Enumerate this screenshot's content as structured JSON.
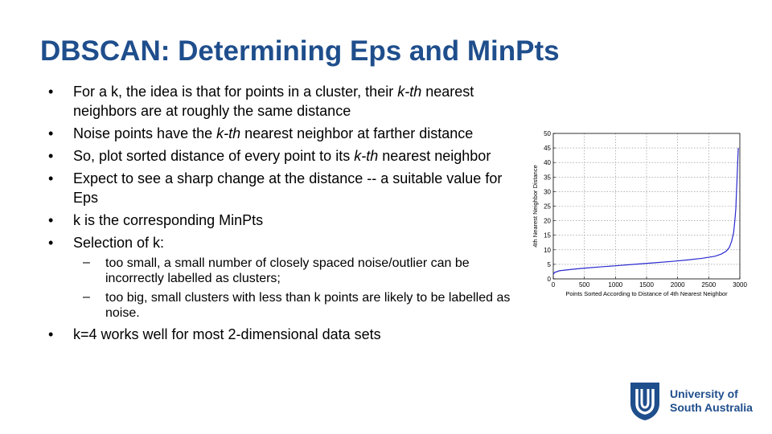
{
  "title": "DBSCAN: Determining Eps and MinPts",
  "bullets": {
    "b1": {
      "pre": "For a k, the idea is that for points in a cluster, their ",
      "em": "k-th",
      "post": " nearest neighbors are at roughly the same distance"
    },
    "b2": {
      "pre": "Noise points have the ",
      "em": "k-th",
      "post": " nearest neighbor at farther distance"
    },
    "b3": {
      "pre": "So, plot sorted distance of every point to its ",
      "em": "k-th",
      "post": " nearest neighbor"
    },
    "b4": "Expect to see a sharp change at the distance -- a suitable value for Eps",
    "b5": "k is the corresponding MinPts",
    "b6": "Selection of k:",
    "sub1": "too small, a small number of closely spaced noise/outlier can be incorrectly labelled as clusters;",
    "sub2": "too big, small clusters with less than k points are likely to be labelled as noise.",
    "b7": "k=4 works well for most 2-dimensional data sets",
    "bullet_glyph": "•",
    "dash_glyph": "–"
  },
  "chart_data": {
    "type": "line",
    "xlabel": "Points Sorted According to Distance of 4th Nearest Neighbor",
    "ylabel": "4th Nearest Neighbor Distance",
    "xlim": [
      0,
      3000
    ],
    "ylim": [
      0,
      50
    ],
    "xticks": [
      0,
      500,
      1000,
      1500,
      2000,
      2500,
      3000
    ],
    "yticks": [
      0,
      5,
      10,
      15,
      20,
      25,
      30,
      35,
      40,
      45,
      50
    ],
    "grid": true,
    "line_color": "#2a2ad0",
    "series": [
      {
        "x": [
          0,
          20,
          100,
          300,
          500,
          800,
          1000,
          1300,
          1600,
          1900,
          2200,
          2400,
          2600,
          2700,
          2780,
          2830,
          2870,
          2900,
          2920,
          2935,
          2945,
          2955,
          2965,
          2975
        ],
        "values": [
          1.5,
          2.2,
          2.8,
          3.3,
          3.7,
          4.2,
          4.5,
          5.0,
          5.5,
          6.0,
          6.6,
          7.1,
          7.8,
          8.5,
          9.5,
          10.8,
          13.0,
          16.0,
          20.0,
          24.0,
          29.0,
          34.0,
          40.0,
          45.0
        ]
      }
    ]
  },
  "logo": {
    "line1": "University of",
    "line2": "South Australia",
    "color": "#1f4e8c"
  }
}
